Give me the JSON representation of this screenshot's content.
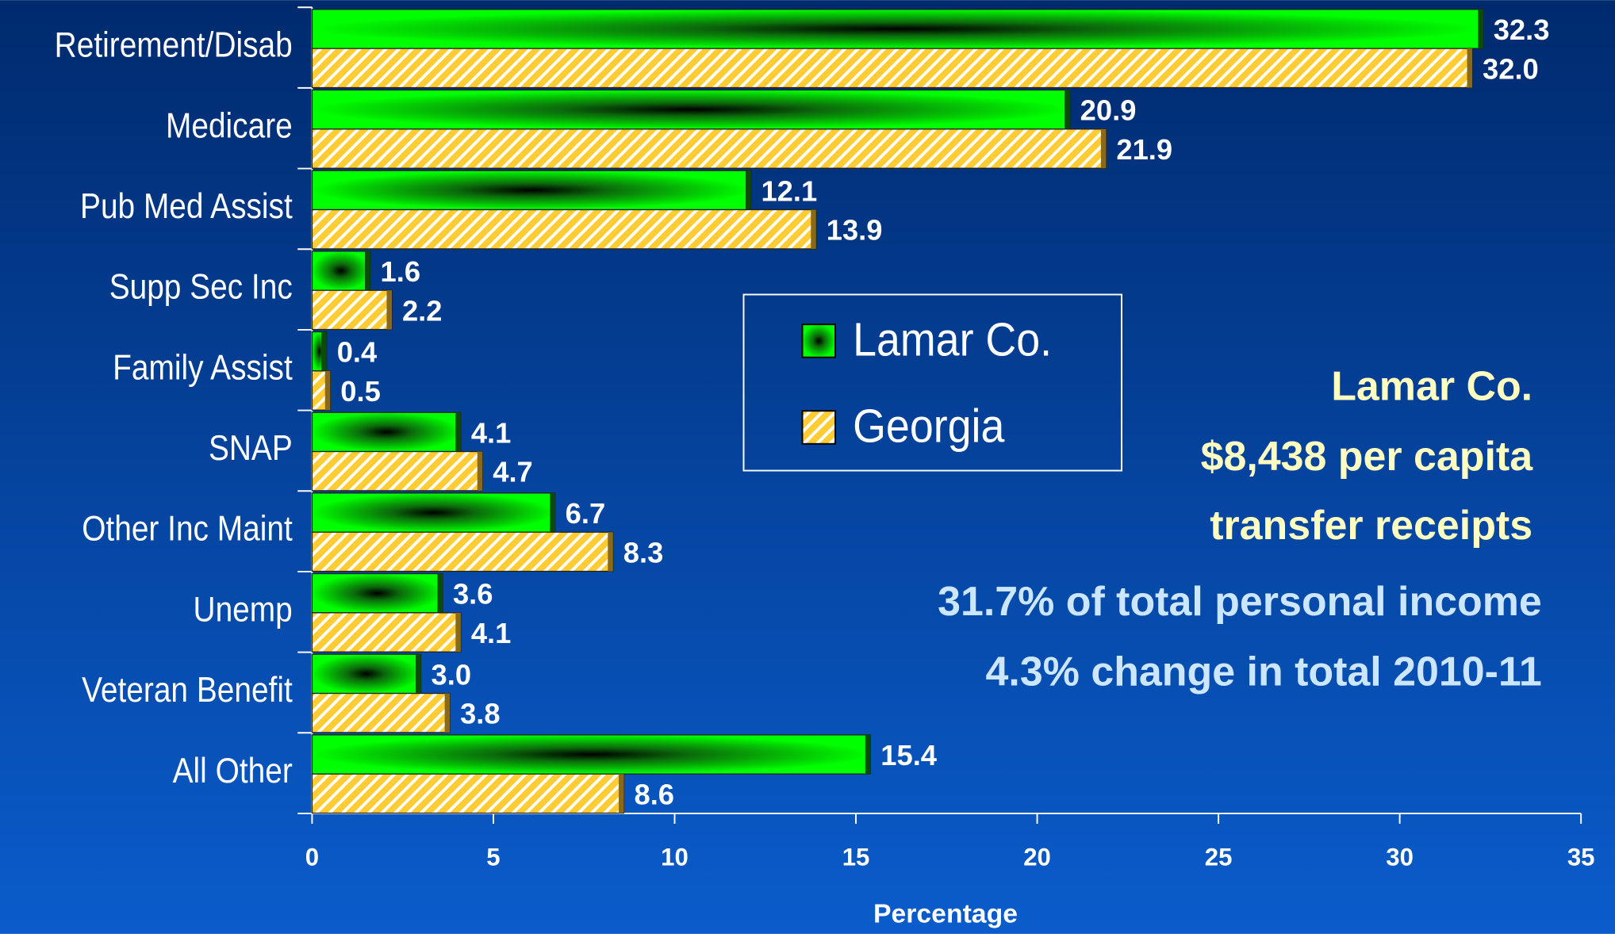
{
  "chart_data": {
    "type": "hbar",
    "categories": [
      "Retirement/Disab",
      "Medicare",
      "Pub Med Assist",
      "Supp Sec Inc",
      "Family Assist",
      "SNAP",
      "Other Inc Maint",
      "Unemp",
      "Veteran Benefit",
      "All Other"
    ],
    "series": [
      {
        "name": "Lamar Co.",
        "color": "#00ff00",
        "values": [
          32.3,
          20.9,
          12.1,
          1.6,
          0.4,
          4.1,
          6.7,
          3.6,
          3.0,
          15.4
        ],
        "value_labels": [
          "32.3",
          "20.9",
          "12.1",
          "1.6",
          "0.4",
          "4.1",
          "6.7",
          "3.6",
          "3.0",
          "15.4"
        ]
      },
      {
        "name": "Georgia",
        "color": "#ffcc33",
        "values": [
          32.0,
          21.9,
          13.9,
          2.2,
          0.5,
          4.7,
          8.3,
          4.1,
          3.8,
          8.6
        ],
        "value_labels": [
          "32.0",
          "21.9",
          "13.9",
          "2.2",
          "0.5",
          "4.7",
          "8.3",
          "4.1",
          "3.8",
          "8.6"
        ]
      }
    ],
    "xlabel": "Percentage",
    "xlim": [
      0,
      35
    ],
    "xticks": [
      0,
      5,
      10,
      15,
      20,
      25,
      30,
      35
    ],
    "annotations": [
      "Lamar Co.",
      "$8,438 per capita",
      "transfer receipts",
      "31.7% of total personal income",
      "4.3% change in total 2010-11"
    ]
  }
}
